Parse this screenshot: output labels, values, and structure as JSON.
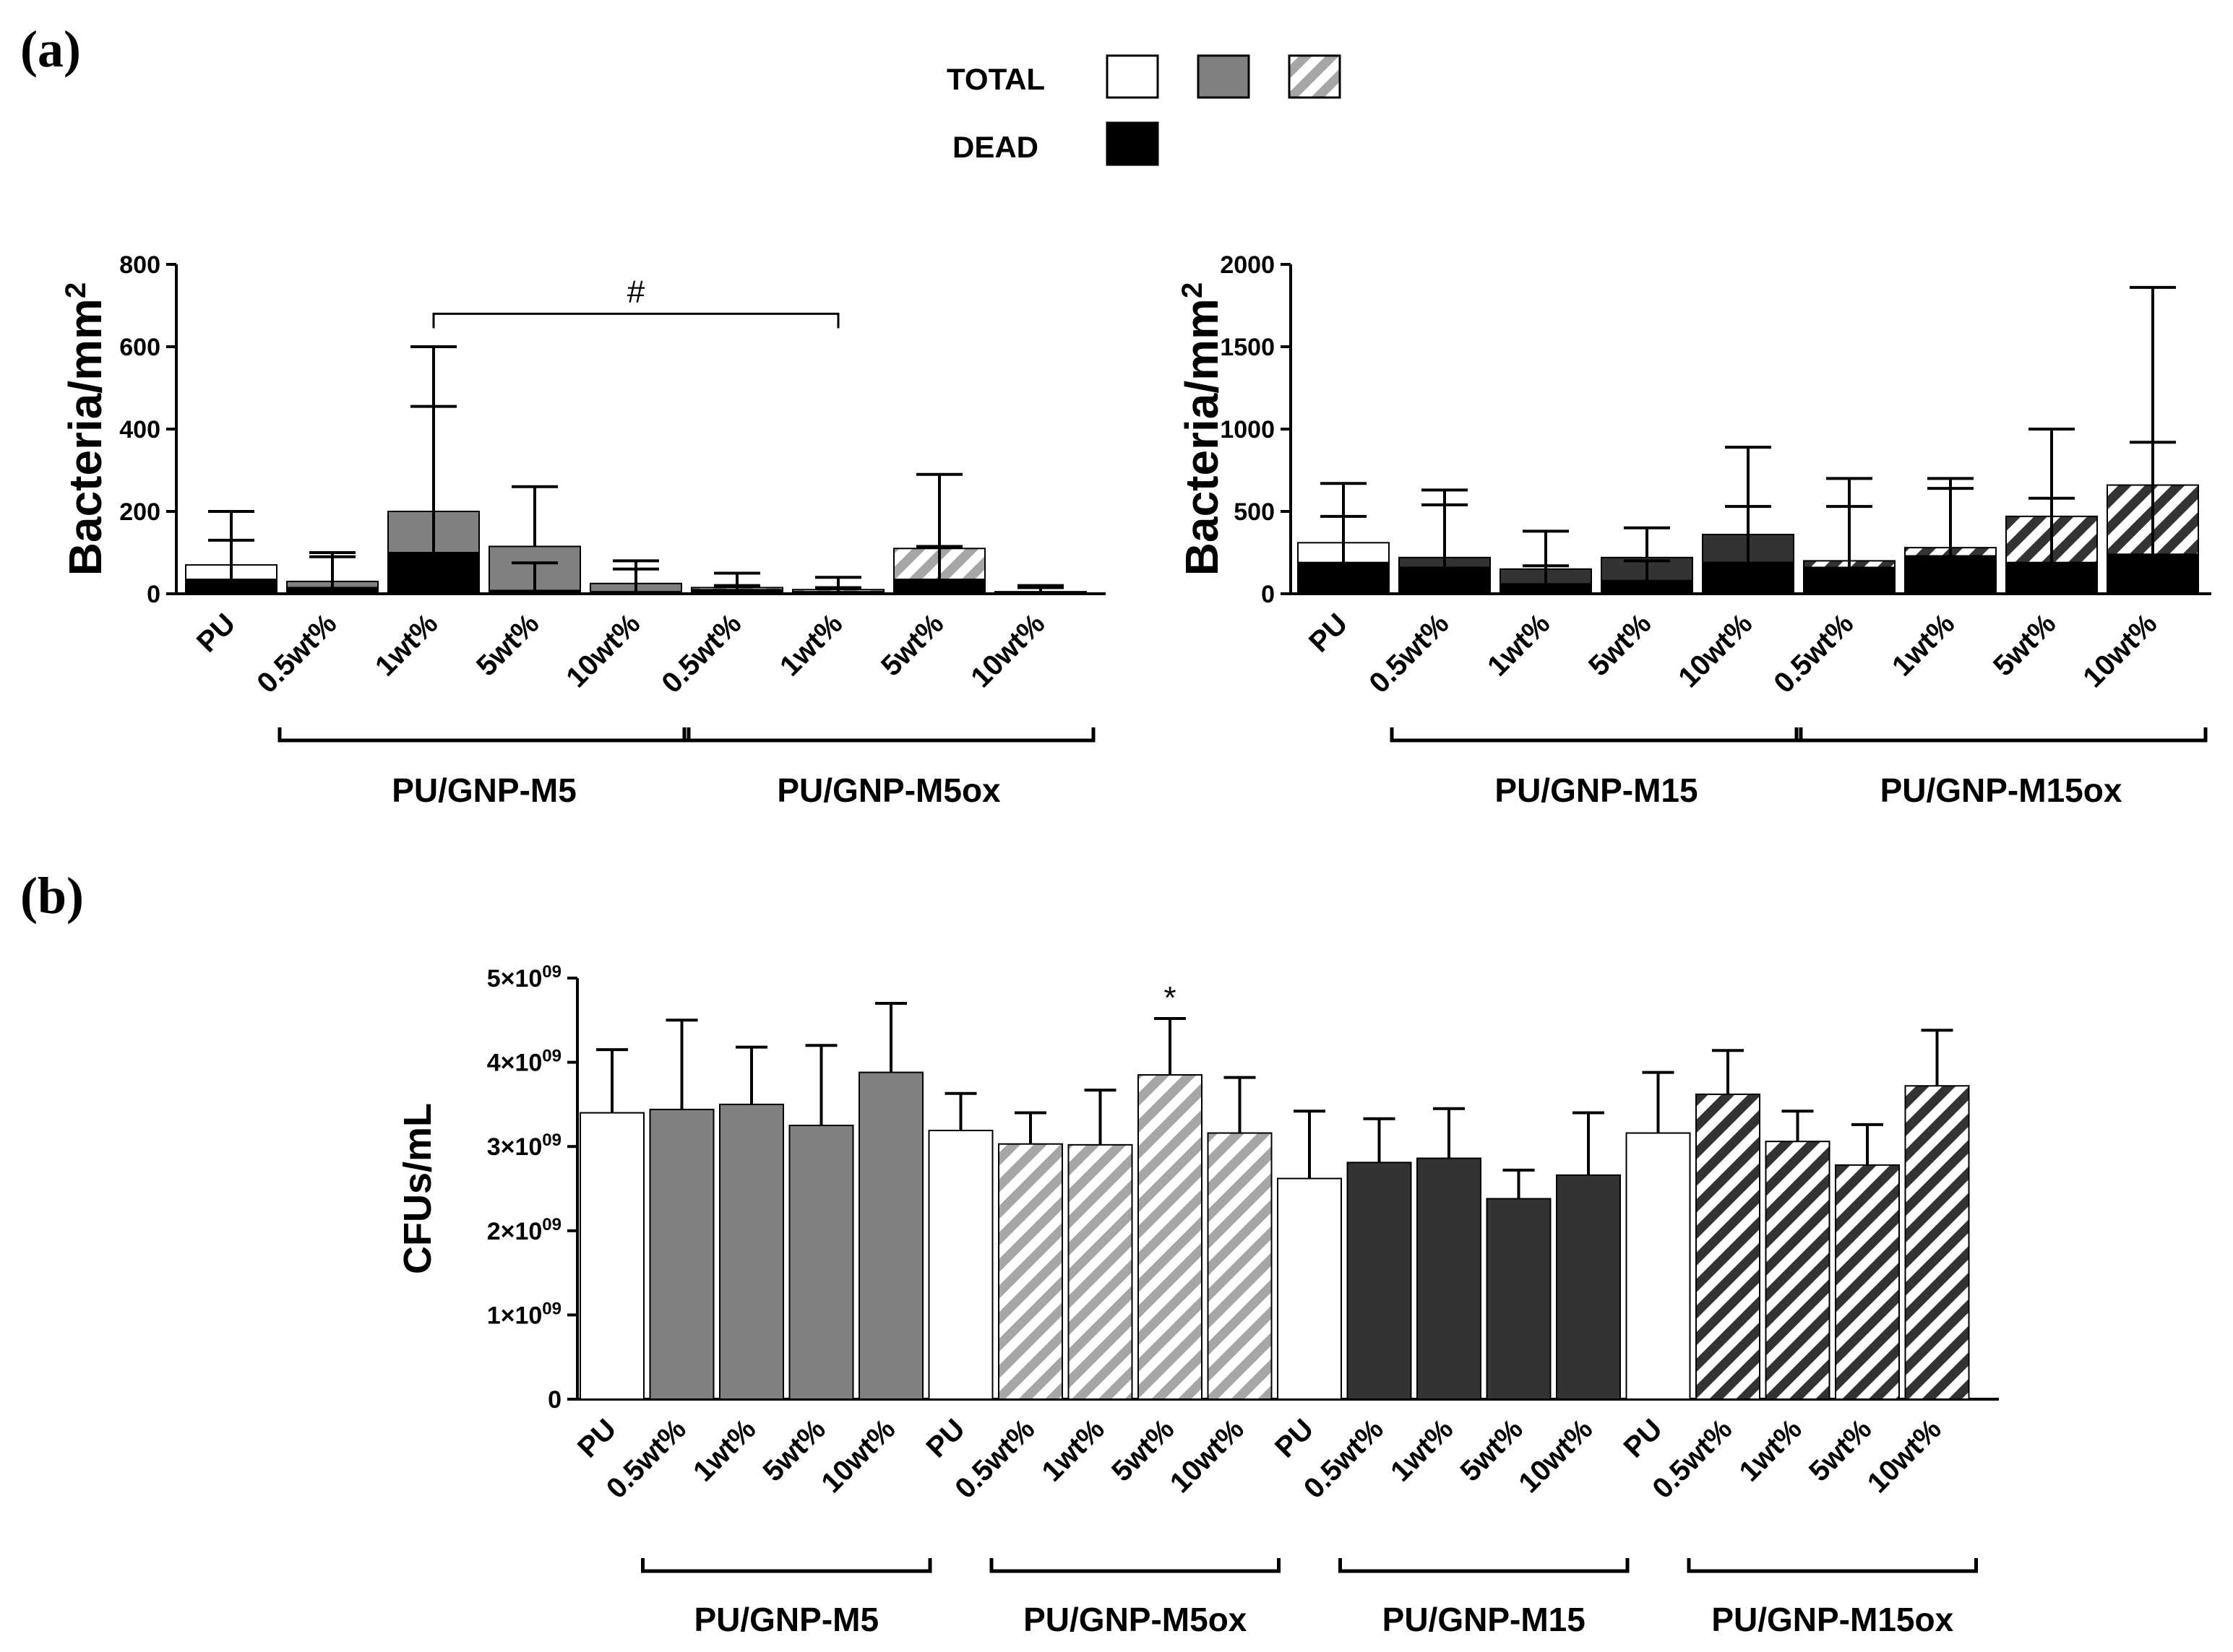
{
  "labels": {
    "panel_a": "(a)",
    "panel_b": "(b)",
    "legend_total": "TOTAL",
    "legend_dead": "DEAD"
  },
  "colors": {
    "white": "#ffffff",
    "gray": "#808080",
    "dark": "#333333",
    "black": "#000000",
    "hatch_light": "#a6a6a6",
    "hatch_dark": "#333333"
  },
  "chart_data": [
    {
      "id": "a-left",
      "type": "bar",
      "stacked_overlay": "dead",
      "ylabel": "Bacteria/mm",
      "ylabel_sup": "2",
      "ylim": [
        0,
        800
      ],
      "yticks": [
        "0",
        "200",
        "400",
        "600",
        "800"
      ],
      "categories": [
        "PU",
        "0.5wt%",
        "1wt%",
        "5wt%",
        "10wt%",
        "0.5wt%",
        "1wt%",
        "5wt%",
        "10wt%"
      ],
      "fills": [
        "white",
        "gray",
        "gray",
        "gray",
        "gray",
        "hatch_light",
        "hatch_light",
        "hatch_light",
        "hatch_light"
      ],
      "series": [
        {
          "role": "total",
          "values": [
            70,
            30,
            200,
            115,
            25,
            15,
            10,
            110,
            5
          ],
          "err": [
            200,
            100,
            600,
            260,
            80,
            50,
            40,
            290,
            15
          ]
        },
        {
          "role": "dead",
          "values": [
            35,
            15,
            100,
            8,
            5,
            10,
            5,
            35,
            3
          ],
          "err": [
            130,
            90,
            455,
            75,
            60,
            20,
            15,
            115,
            20
          ]
        }
      ],
      "groups": [
        {
          "label": "PU/GNP-M5",
          "from": 1,
          "to": 4
        },
        {
          "label": "PU/GNP-M5ox",
          "from": 5,
          "to": 8
        }
      ],
      "annotations": [
        {
          "text": "#",
          "from": 2,
          "to": 6,
          "y": 680
        }
      ]
    },
    {
      "id": "a-right",
      "type": "bar",
      "stacked_overlay": "dead",
      "ylabel": "Bacteria/mm",
      "ylabel_sup": "2",
      "ylim": [
        0,
        2000
      ],
      "yticks": [
        "0",
        "500",
        "1000",
        "1500",
        "2000"
      ],
      "categories": [
        "PU",
        "0.5wt%",
        "1wt%",
        "5wt%",
        "10wt%",
        "0.5wt%",
        "1wt%",
        "5wt%",
        "10wt%"
      ],
      "fills": [
        "white",
        "dark",
        "dark",
        "dark",
        "dark",
        "hatch_dark",
        "hatch_dark",
        "hatch_dark",
        "hatch_dark"
      ],
      "series": [
        {
          "role": "total",
          "values": [
            310,
            220,
            150,
            220,
            360,
            200,
            280,
            470,
            660
          ],
          "err": [
            670,
            630,
            380,
            400,
            890,
            700,
            700,
            1000,
            1860
          ]
        },
        {
          "role": "dead",
          "values": [
            190,
            160,
            60,
            80,
            190,
            160,
            230,
            190,
            240
          ],
          "err": [
            470,
            540,
            170,
            200,
            530,
            530,
            640,
            580,
            920
          ]
        }
      ],
      "groups": [
        {
          "label": "PU/GNP-M15",
          "from": 1,
          "to": 4
        },
        {
          "label": "PU/GNP-M15ox",
          "from": 5,
          "to": 8
        }
      ]
    },
    {
      "id": "b",
      "type": "bar",
      "ylabel": "CFUs/mL",
      "ylim": [
        0,
        5000000000.0
      ],
      "yticks": [
        {
          "base": "0",
          "exp": ""
        },
        {
          "base": "1×10",
          "exp": "09"
        },
        {
          "base": "2×10",
          "exp": "09"
        },
        {
          "base": "3×10",
          "exp": "09"
        },
        {
          "base": "4×10",
          "exp": "09"
        },
        {
          "base": "5×10",
          "exp": "09"
        }
      ],
      "categories": [
        "PU",
        "0.5wt%",
        "1wt%",
        "5wt%",
        "10wt%",
        "PU",
        "0.5wt%",
        "1wt%",
        "5wt%",
        "10wt%",
        "PU",
        "0.5wt%",
        "1wt%",
        "5wt%",
        "10wt%",
        "PU",
        "0.5wt%",
        "1wt%",
        "5wt%",
        "10wt%"
      ],
      "fills": [
        "white",
        "gray",
        "gray",
        "gray",
        "gray",
        "white",
        "hatch_light",
        "hatch_light",
        "hatch_light",
        "hatch_light",
        "white",
        "dark",
        "dark",
        "dark",
        "dark",
        "white",
        "hatch_dark",
        "hatch_dark",
        "hatch_dark",
        "hatch_dark"
      ],
      "values": [
        3400000000.0,
        3440000000.0,
        3500000000.0,
        3250000000.0,
        3880000000.0,
        3190000000.0,
        3030000000.0,
        3020000000.0,
        3850000000.0,
        3160000000.0,
        2620000000.0,
        2810000000.0,
        2860000000.0,
        2380000000.0,
        2660000000.0,
        3160000000.0,
        3620000000.0,
        3060000000.0,
        2780000000.0,
        3720000000.0
      ],
      "err": [
        4150000000.0,
        4500000000.0,
        4180000000.0,
        4200000000.0,
        4700000000.0,
        3630000000.0,
        3400000000.0,
        3670000000.0,
        4520000000.0,
        3820000000.0,
        3420000000.0,
        3330000000.0,
        3450000000.0,
        2720000000.0,
        3400000000.0,
        3880000000.0,
        4140000000.0,
        3420000000.0,
        3260000000.0,
        4380000000.0
      ],
      "groups": [
        {
          "label": "PU/GNP-M5",
          "from": 1,
          "to": 4
        },
        {
          "label": "PU/GNP-M5ox",
          "from": 6,
          "to": 9
        },
        {
          "label": "PU/GNP-M15",
          "from": 11,
          "to": 14
        },
        {
          "label": "PU/GNP-M15ox",
          "from": 16,
          "to": 19
        }
      ],
      "annotations": [
        {
          "text": "*",
          "bar": 8
        }
      ]
    }
  ]
}
